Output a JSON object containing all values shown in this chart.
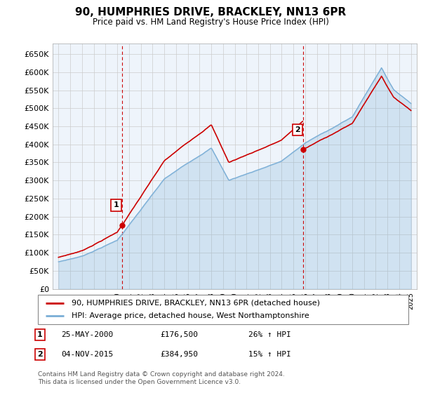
{
  "title": "90, HUMPHRIES DRIVE, BRACKLEY, NN13 6PR",
  "subtitle": "Price paid vs. HM Land Registry's House Price Index (HPI)",
  "legend_line1": "90, HUMPHRIES DRIVE, BRACKLEY, NN13 6PR (detached house)",
  "legend_line2": "HPI: Average price, detached house, West Northamptonshire",
  "annotation1_date": "25-MAY-2000",
  "annotation1_price": "£176,500",
  "annotation1_hpi": "26% ↑ HPI",
  "annotation2_date": "04-NOV-2015",
  "annotation2_price": "£384,950",
  "annotation2_hpi": "15% ↑ HPI",
  "footer": "Contains HM Land Registry data © Crown copyright and database right 2024.\nThis data is licensed under the Open Government Licence v3.0.",
  "purchase1_year": 2000.4,
  "purchase1_price": 176500,
  "purchase2_year": 2015.84,
  "purchase2_price": 384950,
  "hpi_color": "#7aaed6",
  "price_color": "#cc0000",
  "vline_color": "#cc0000",
  "fill_color": "#ddeeff",
  "background_color": "#ffffff",
  "grid_color": "#cccccc",
  "ylim_min": 0,
  "ylim_max": 680000,
  "ytick_step": 50000,
  "xmin": 1994.5,
  "xmax": 2025.5
}
